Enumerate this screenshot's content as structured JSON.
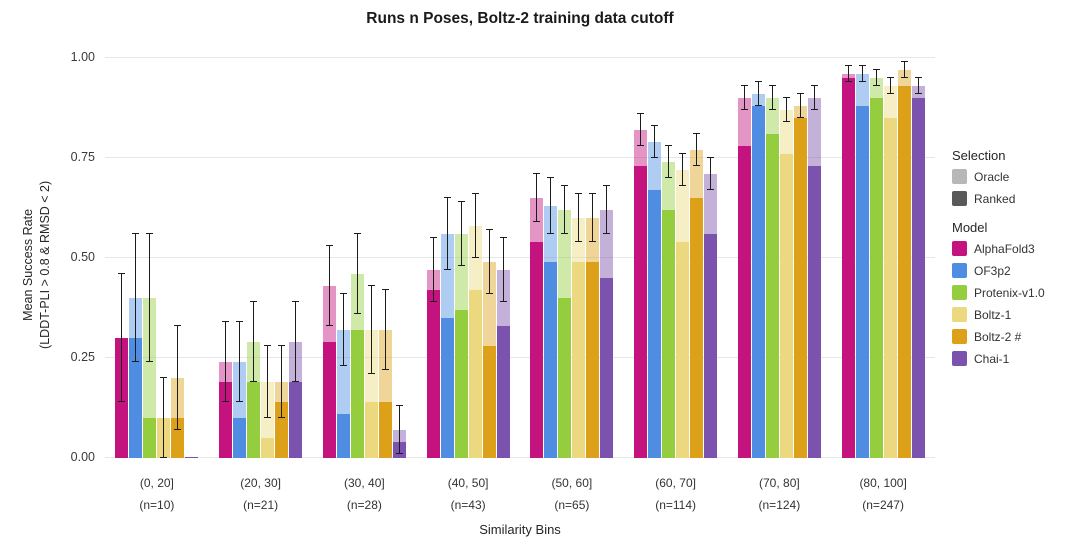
{
  "legend": {
    "selection_title": "Selection",
    "selection_items": [
      {
        "label": "Oracle",
        "swatch": "#b7b7b7"
      },
      {
        "label": "Ranked",
        "swatch": "#595959"
      }
    ],
    "model_title": "Model",
    "model_items": [
      {
        "label": "AlphaFold3",
        "color": "#c4127f"
      },
      {
        "label": "OF3p2",
        "color": "#4e8de2"
      },
      {
        "label": "Protenix-v1.0",
        "color": "#94ce3e"
      },
      {
        "label": "Boltz-1",
        "color": "#ecd97f"
      },
      {
        "label": "Boltz-2 #",
        "color": "#dca119"
      },
      {
        "label": "Chai-1",
        "color": "#7b52ae"
      }
    ]
  },
  "chart_data": {
    "type": "bar",
    "title": "Runs n Poses, Boltz-2 training data cutoff",
    "xlabel": "Similarity Bins",
    "ylabel_line1": "Mean Success Rate",
    "ylabel_line2": "(LDDT-PLI > 0.8 & RMSD < 2)",
    "ylim": [
      0,
      1
    ],
    "ytick_values": [
      0,
      0.25,
      0.5,
      0.75,
      1
    ],
    "grid": true,
    "legend_position": "right",
    "oracle_alpha": 0.45,
    "categories": [
      "(0, 20]",
      "(20, 30]",
      "(30, 40]",
      "(40, 50]",
      "(50, 60]",
      "(60, 70]",
      "(70, 80]",
      "(80, 100]"
    ],
    "counts": [
      "(n=10)",
      "(n=21)",
      "(n=28)",
      "(n=43)",
      "(n=65)",
      "(n=114)",
      "(n=124)",
      "(n=247)"
    ],
    "selection_variants": [
      "Oracle",
      "Ranked"
    ],
    "series": [
      {
        "name": "AlphaFold3",
        "color": "#c4127f",
        "oracle": [
          0.3,
          0.24,
          0.43,
          0.47,
          0.65,
          0.82,
          0.9,
          0.96
        ],
        "ranked": [
          0.3,
          0.19,
          0.29,
          0.42,
          0.54,
          0.73,
          0.78,
          0.95
        ],
        "err": [
          0.16,
          0.1,
          0.1,
          0.08,
          0.06,
          0.04,
          0.03,
          0.02
        ]
      },
      {
        "name": "OF3p2",
        "color": "#4e8de2",
        "oracle": [
          0.4,
          0.24,
          0.32,
          0.56,
          0.63,
          0.79,
          0.91,
          0.96
        ],
        "ranked": [
          0.3,
          0.1,
          0.11,
          0.35,
          0.49,
          0.67,
          0.88,
          0.88
        ],
        "err": [
          0.16,
          0.1,
          0.09,
          0.09,
          0.07,
          0.04,
          0.03,
          0.02
        ]
      },
      {
        "name": "Protenix-v1.0",
        "color": "#94ce3e",
        "oracle": [
          0.4,
          0.29,
          0.46,
          0.56,
          0.62,
          0.74,
          0.9,
          0.95
        ],
        "ranked": [
          0.1,
          0.19,
          0.32,
          0.37,
          0.4,
          0.62,
          0.81,
          0.9
        ],
        "err": [
          0.16,
          0.1,
          0.1,
          0.08,
          0.06,
          0.04,
          0.03,
          0.02
        ]
      },
      {
        "name": "Boltz-1",
        "color": "#ecd97f",
        "oracle": [
          0.1,
          0.19,
          0.32,
          0.58,
          0.6,
          0.72,
          0.87,
          0.93
        ],
        "ranked": [
          0.1,
          0.05,
          0.14,
          0.42,
          0.49,
          0.54,
          0.76,
          0.85
        ],
        "err": [
          0.1,
          0.09,
          0.11,
          0.08,
          0.06,
          0.04,
          0.03,
          0.02
        ]
      },
      {
        "name": "Boltz-2 #",
        "color": "#dca119",
        "oracle": [
          0.2,
          0.19,
          0.32,
          0.49,
          0.6,
          0.77,
          0.88,
          0.97
        ],
        "ranked": [
          0.1,
          0.14,
          0.14,
          0.28,
          0.49,
          0.65,
          0.85,
          0.93
        ],
        "err": [
          0.13,
          0.09,
          0.1,
          0.08,
          0.06,
          0.04,
          0.03,
          0.02
        ]
      },
      {
        "name": "Chai-1",
        "color": "#7b52ae",
        "oracle": [
          0.0,
          0.29,
          0.07,
          0.47,
          0.62,
          0.71,
          0.9,
          0.93
        ],
        "ranked": [
          0.0,
          0.19,
          0.04,
          0.33,
          0.45,
          0.56,
          0.73,
          0.9
        ],
        "err": [
          0.0,
          0.1,
          0.06,
          0.08,
          0.06,
          0.04,
          0.03,
          0.02
        ]
      }
    ]
  }
}
